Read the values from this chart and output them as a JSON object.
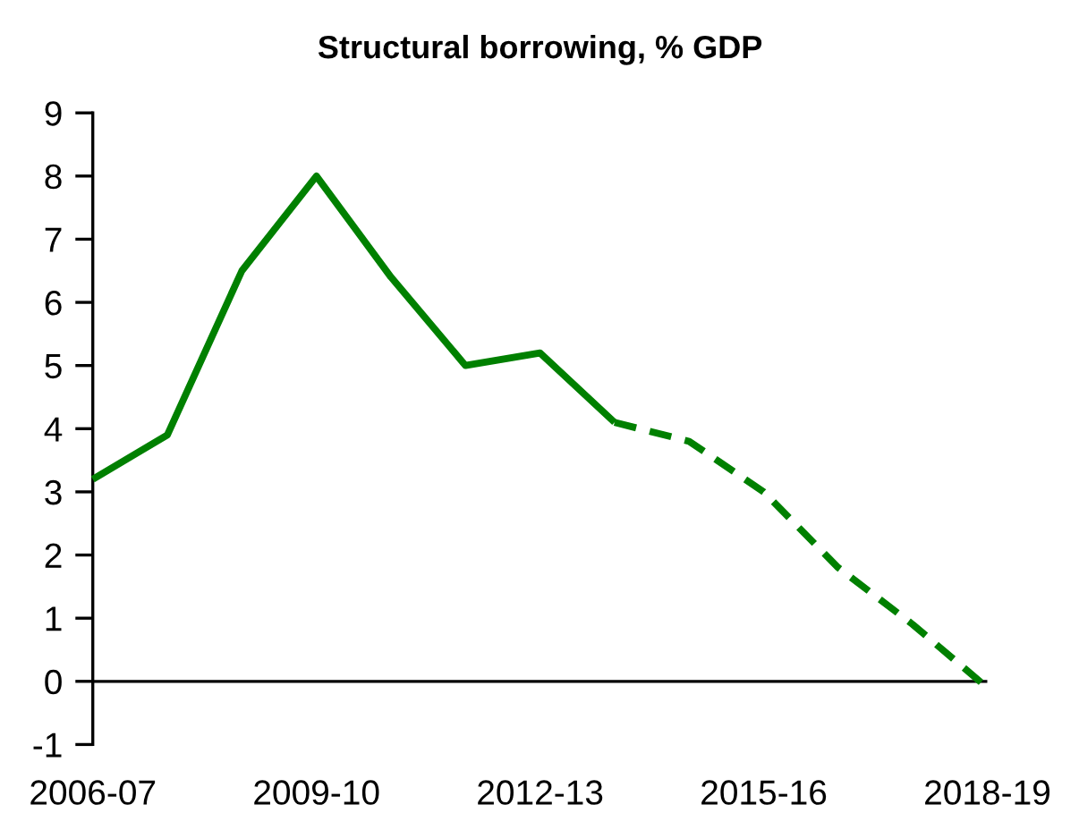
{
  "chart_data": {
    "type": "line",
    "title": "Structural borrowing, % GDP",
    "categories": [
      "2006-07",
      null,
      null,
      "2009-10",
      null,
      null,
      "2012-13",
      null,
      null,
      "2015-16",
      null,
      null,
      "2018-19"
    ],
    "series": [
      {
        "color": "#008000",
        "line_style": "solid",
        "values": [
          3.2,
          3.9,
          6.5,
          8.0,
          6.4,
          5.0,
          5.2,
          4.1,
          null,
          null,
          null,
          null,
          null
        ]
      },
      {
        "color": "#008000",
        "line_style": "dashed",
        "values": [
          null,
          null,
          null,
          null,
          null,
          null,
          null,
          4.1,
          3.8,
          3.0,
          1.8,
          0.9,
          -0.1
        ]
      }
    ],
    "ylim": [
      -1,
      9
    ],
    "yticks": [
      -1,
      0,
      1,
      2,
      3,
      4,
      5,
      6,
      7,
      8,
      9
    ],
    "ref_lines": [
      {
        "axis": "y",
        "value": 0,
        "color": "#000000"
      }
    ]
  }
}
